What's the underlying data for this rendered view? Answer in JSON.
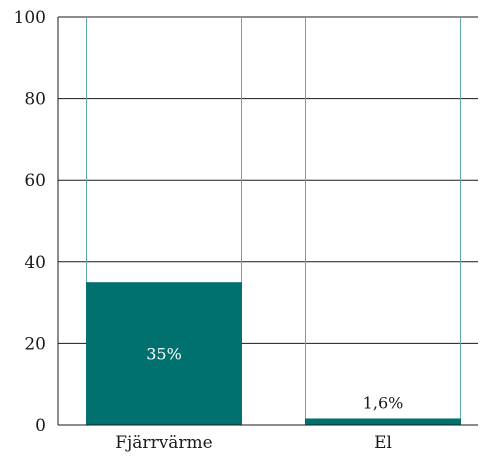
{
  "chart_data": {
    "type": "bar",
    "categories": [
      "Fjärrvärme",
      "El"
    ],
    "values": [
      35,
      1.6
    ],
    "data_labels": [
      "35%",
      "1,6%"
    ],
    "ylim": [
      0,
      100
    ],
    "yticks": [
      0,
      20,
      40,
      60,
      80,
      100
    ],
    "ytick_labels": [
      "0",
      "20",
      "40",
      "60",
      "80",
      "100"
    ],
    "grid": true,
    "title": "",
    "xlabel": "",
    "ylabel": ""
  },
  "colors": {
    "bar": "#00716e",
    "bar_outline": "#5ea8a6",
    "grid": "#1a1a1a",
    "inside_label": "#ffffff",
    "outside_label": "#1a1a1a"
  }
}
